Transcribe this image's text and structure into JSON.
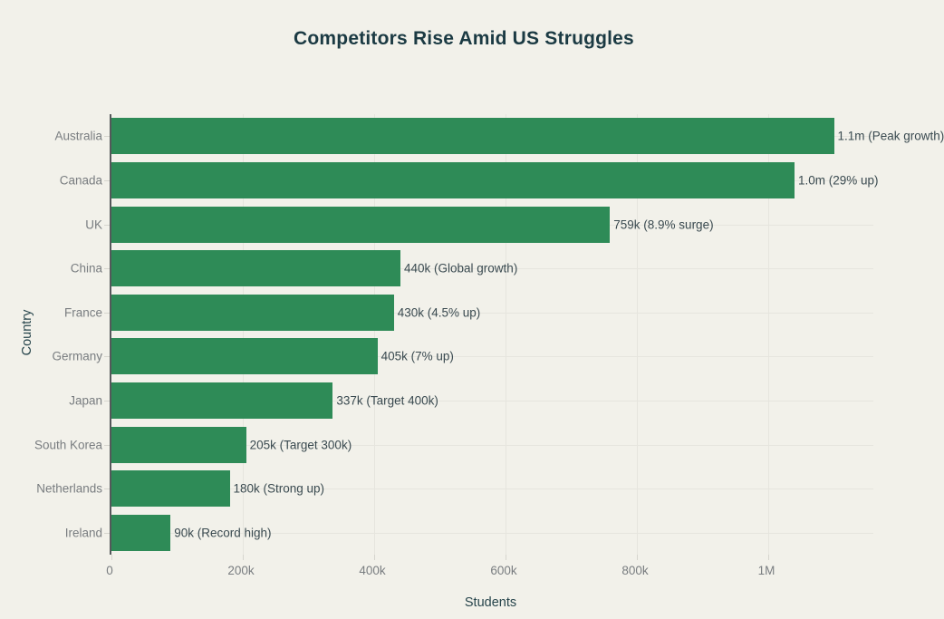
{
  "chart_data": {
    "type": "bar",
    "orientation": "horizontal",
    "title": "Competitors Rise Amid US Struggles",
    "xlabel": "Students",
    "ylabel": "Country",
    "categories": [
      "Australia",
      "Canada",
      "UK",
      "China",
      "France",
      "Germany",
      "Japan",
      "South Korea",
      "Netherlands",
      "Ireland"
    ],
    "values": [
      1100000,
      1040000,
      759000,
      440000,
      430000,
      405000,
      337000,
      205000,
      180000,
      90000
    ],
    "bar_labels": [
      "1.1m (Peak growth)",
      "1.0m (29% up)",
      "759k (8.9% surge)",
      "440k (Global growth)",
      "430k (4.5% up)",
      "405k (7% up)",
      "337k (Target 400k)",
      "205k (Target 300k)",
      "180k (Strong up)",
      "90k (Record high)"
    ],
    "x_ticks": [
      {
        "label": "0",
        "value": 0
      },
      {
        "label": "200k",
        "value": 200000
      },
      {
        "label": "400k",
        "value": 400000
      },
      {
        "label": "600k",
        "value": 600000
      },
      {
        "label": "800k",
        "value": 800000
      },
      {
        "label": "1M",
        "value": 1000000
      }
    ],
    "xlim": [
      0,
      1160000
    ],
    "grid": true,
    "legend": null,
    "colors": {
      "bar": "#2e8b57",
      "background": "#f2f1ea",
      "title": "#1b3a43",
      "bar_label": "#3a4a50",
      "tick_label": "#797d80",
      "axis_title": "#27454c",
      "gridline": "#e6e5de",
      "axis_line": "#54585a"
    }
  }
}
